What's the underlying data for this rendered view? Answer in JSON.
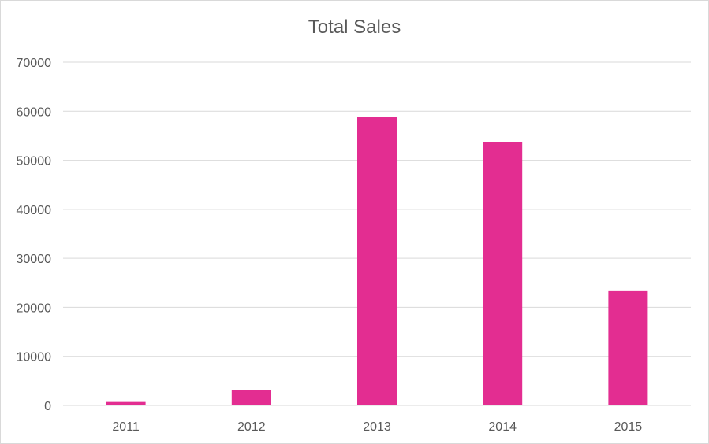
{
  "chart_data": {
    "type": "bar",
    "title": "Total Sales",
    "xlabel": "",
    "ylabel": "",
    "categories": [
      "2011",
      "2012",
      "2013",
      "2014",
      "2015"
    ],
    "series": [
      {
        "values": [
          700,
          3100,
          58800,
          53700,
          23300
        ]
      }
    ],
    "ylim": [
      0,
      70000
    ],
    "yticks": [
      "0",
      "10000",
      "20000",
      "30000",
      "40000",
      "50000",
      "60000",
      "70000"
    ],
    "grid": true,
    "legend": "none",
    "bar_color": "#e32d91",
    "grid_color": "#d9d9d9"
  }
}
